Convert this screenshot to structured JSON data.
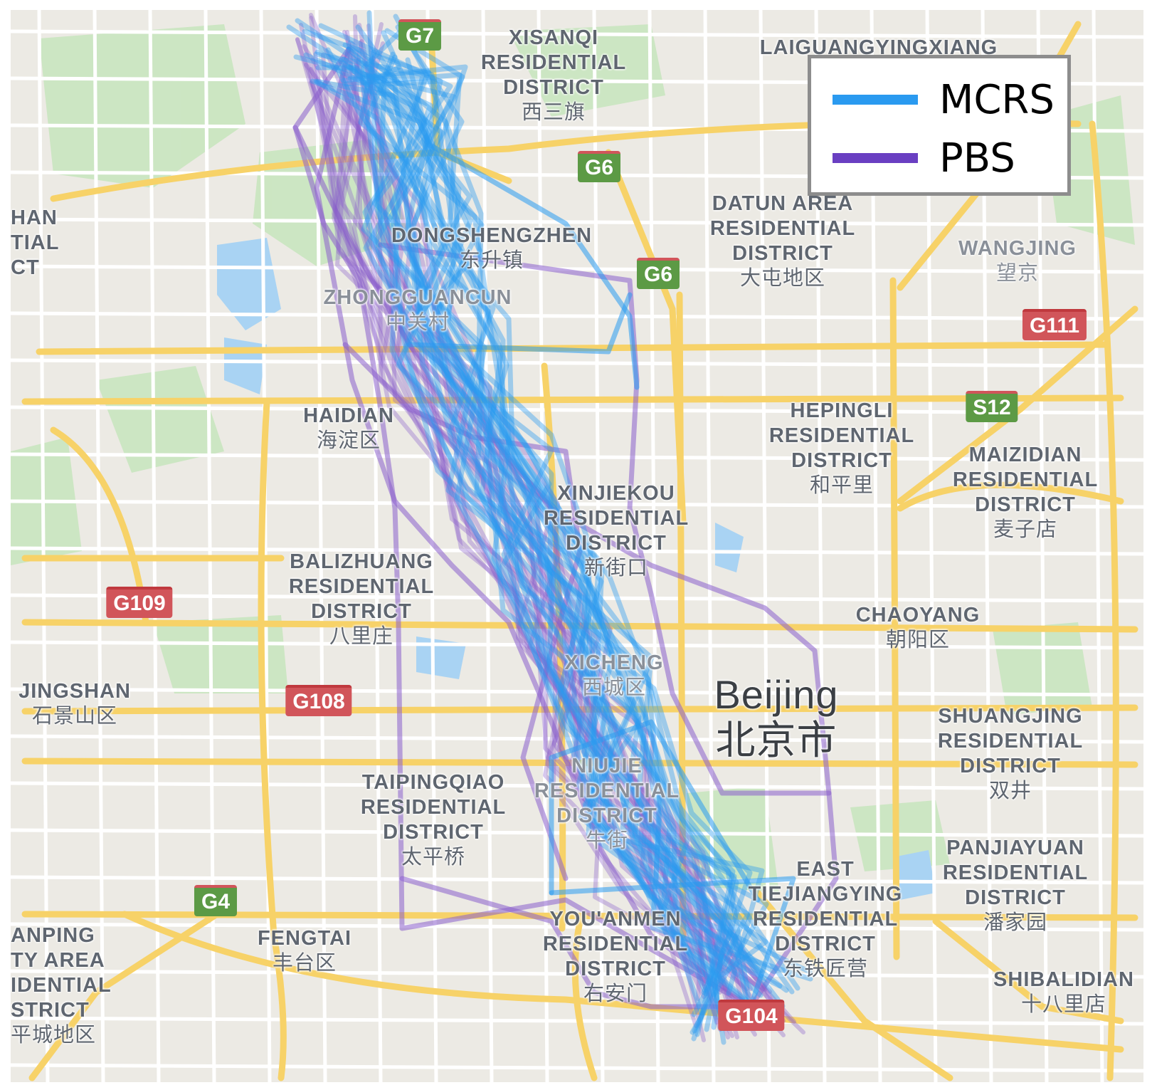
{
  "map": {
    "highways": [
      {
        "label": "G7",
        "color": "green"
      },
      {
        "label": "G6",
        "color": "green"
      },
      {
        "label": "G6",
        "color": "green"
      },
      {
        "label": "G111",
        "color": "red"
      },
      {
        "label": "S12",
        "color": "green"
      },
      {
        "label": "G109",
        "color": "red"
      },
      {
        "label": "G108",
        "color": "red"
      },
      {
        "label": "G4",
        "color": "green"
      },
      {
        "label": "G104",
        "color": "red"
      }
    ],
    "places": [
      {
        "en": "XISANQI\nRESIDENTIAL\nDISTRICT",
        "zh": "西三旗"
      },
      {
        "en": "LAIGUANGYINGXIANG",
        "zh": ""
      },
      {
        "en": "HAN\nTIAL\nCT",
        "zh": ""
      },
      {
        "en": "DONGSHENGZHEN",
        "zh": "东升镇"
      },
      {
        "en": "ZHONGGUANCUN",
        "zh": "中关村"
      },
      {
        "en": "DATUN AREA\nRESIDENTIAL\nDISTRICT",
        "zh": "大屯地区"
      },
      {
        "en": "WANGJING",
        "zh": "望京"
      },
      {
        "en": "HAIDIAN",
        "zh": "海淀区"
      },
      {
        "en": "HEPINGLI\nRESIDENTIAL\nDISTRICT",
        "zh": "和平里"
      },
      {
        "en": "MAIZIDIAN\nRESIDENTIAL\nDISTRICT",
        "zh": "麦子店"
      },
      {
        "en": "XINJIEKOU\nRESIDENTIAL\nDISTRICT",
        "zh": "新街口"
      },
      {
        "en": "BALIZHUANG\nRESIDENTIAL\nDISTRICT",
        "zh": "八里庄"
      },
      {
        "en": "CHAOYANG",
        "zh": "朝阳区"
      },
      {
        "en": "XICHENG",
        "zh": "西城区"
      },
      {
        "en": "JINGSHAN",
        "zh": "石景山区"
      },
      {
        "en": "SHUANGJING\nRESIDENTIAL\nDISTRICT",
        "zh": "双井"
      },
      {
        "en": "NIUJIE\nRESIDENTIAL\nDISTRICT",
        "zh": "牛街"
      },
      {
        "en": "TAIPINGQIAO\nRESIDENTIAL\nDISTRICT",
        "zh": "太平桥"
      },
      {
        "en": "PANJIAYUAN\nRESIDENTIAL\nDISTRICT",
        "zh": "潘家园"
      },
      {
        "en": "EAST\nTIEJIANGYING\nRESIDENTIAL\nDISTRICT",
        "zh": "东铁匠营"
      },
      {
        "en": "YOU'ANMEN\nRESIDENTIAL\nDISTRICT",
        "zh": "右安门"
      },
      {
        "en": "FENGTAI",
        "zh": "丰台区"
      },
      {
        "en": "ANPING\nTY AREA\nIDENTIAL\nSTRICT",
        "zh": "平城地区"
      },
      {
        "en": "SHIBALIDIAN",
        "zh": "十八里店"
      }
    ],
    "city": {
      "en": "Beijing",
      "zh": "北京市"
    }
  },
  "legend": {
    "items": [
      {
        "label": "MCRS",
        "color": "#2a9af0"
      },
      {
        "label": "PBS",
        "color": "#6a3fc2"
      }
    ]
  },
  "colors": {
    "map_bg": "#eceae4",
    "road_major": "#f7d268",
    "road_minor": "#ffffff",
    "park": "#c9e6bf",
    "water": "#a9d3f3",
    "route_mcrs": "#2a9af0",
    "route_pbs": "#8a5fcc"
  }
}
